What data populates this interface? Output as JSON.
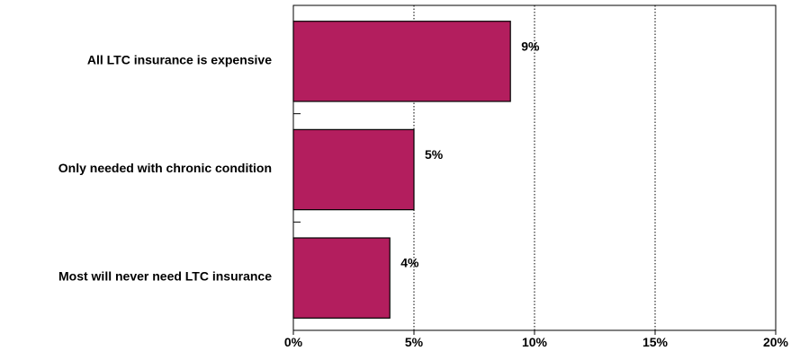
{
  "chart_data": {
    "type": "bar",
    "orientation": "horizontal",
    "categories": [
      "All LTC insurance is expensive",
      "Only needed with chronic condition",
      "Most will never need LTC insurance"
    ],
    "values": [
      9,
      5,
      4
    ],
    "value_labels": [
      "9%",
      "5%",
      "4%"
    ],
    "xlim": [
      0,
      20
    ],
    "x_ticks": [
      0,
      5,
      10,
      15,
      20
    ],
    "x_tick_labels": [
      "0%",
      "5%",
      "10%",
      "15%",
      "20%"
    ],
    "grid": "vertical dotted",
    "legend": "none",
    "bar_color": "#b31e5e",
    "title": "",
    "xlabel": "",
    "ylabel": ""
  }
}
